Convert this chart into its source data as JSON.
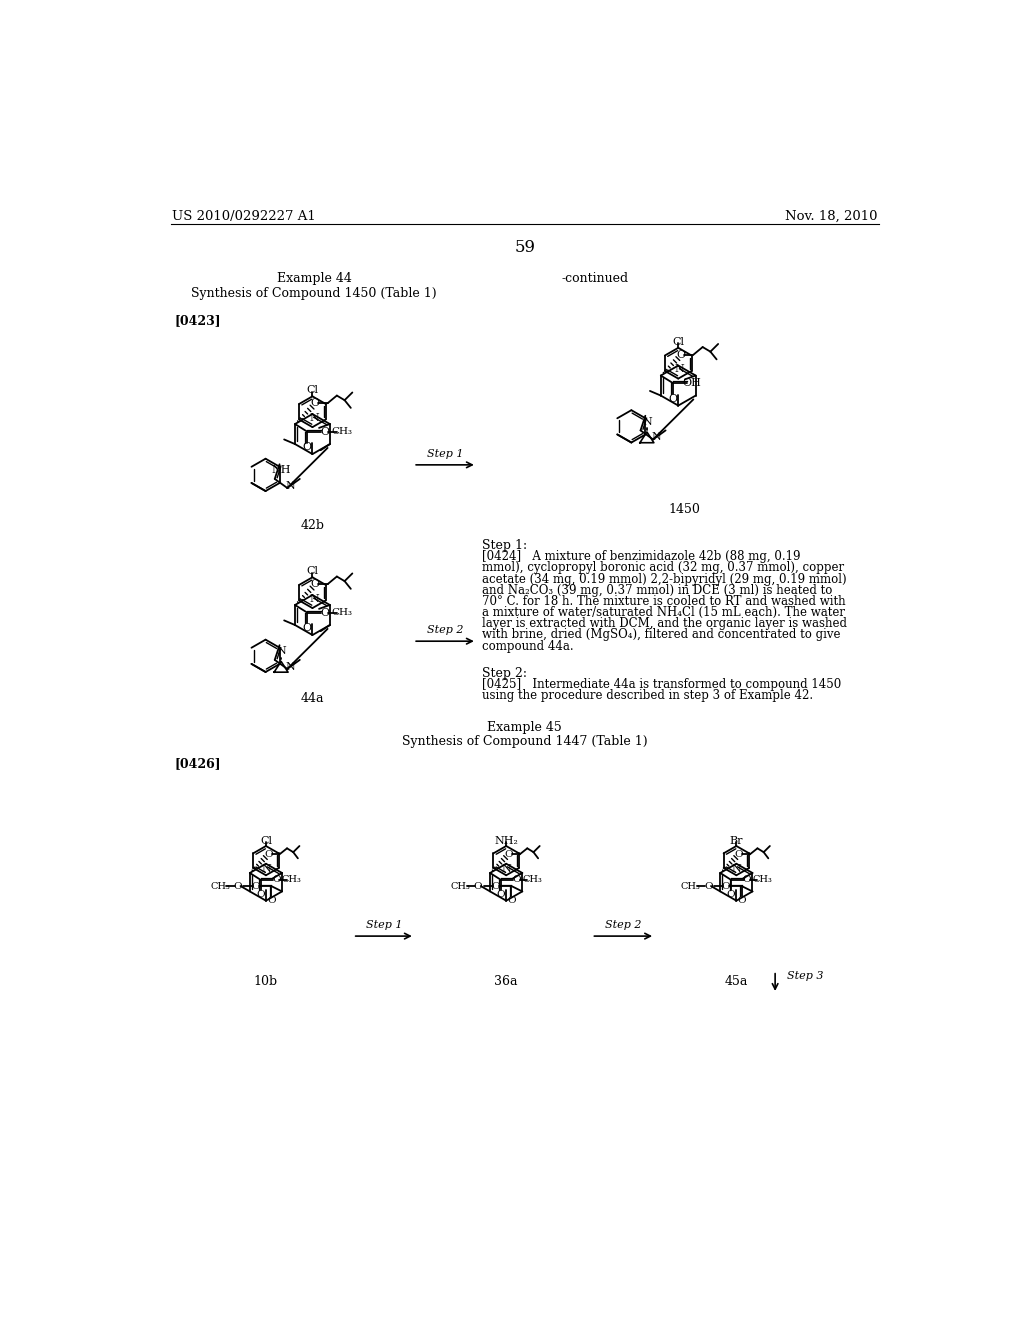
{
  "page_number": "59",
  "patent_number": "US 2010/0292227 A1",
  "patent_date": "Nov. 18, 2010",
  "background_color": "#ffffff",
  "title_left": "Example 44",
  "subtitle_left": "Synthesis of Compound 1450 (Table 1)",
  "para_ref_1": "[0423]",
  "continued_label": "-continued",
  "label_42b": "42b",
  "label_44a": "44a",
  "label_1450": "1450",
  "step1_label": "Step 1",
  "step2_label": "Step 2",
  "step1_header": "Step 1:",
  "step1_body": "[0424]   A mixture of benzimidazole 42b (88 mg, 0.19\nmmol), cyclopropyl boronic acid (32 mg, 0.37 mmol), copper\nacetate (34 mg, 0.19 mmol) 2,2-bipyridyl (29 mg, 0.19 mmol)\nand Na₂CO₃ (39 mg, 0.37 mmol) in DCE (3 ml) is heated to\n70° C. for 18 h. The mixture is cooled to RT and washed with\na mixture of water/saturated NH₄Cl (15 mL each). The water\nlayer is extracted with DCM, and the organic layer is washed\nwith brine, dried (MgSO₄), filtered and concentrated to give\ncompound 44a.",
  "step2_header": "Step 2:",
  "step2_body": "[0425]   Intermediate 44a is transformed to compound 1450\nusing the procedure described in step 3 of Example 42.",
  "example45_title": "Example 45",
  "example45_subtitle": "Synthesis of Compound 1447 (Table 1)",
  "para_ref_45": "[0426]",
  "label_10b": "10b",
  "label_36a": "36a",
  "label_45a": "45a",
  "step1_45_label": "Step 1",
  "step2_45_label": "Step 2",
  "step3_45_label": "Step 3"
}
